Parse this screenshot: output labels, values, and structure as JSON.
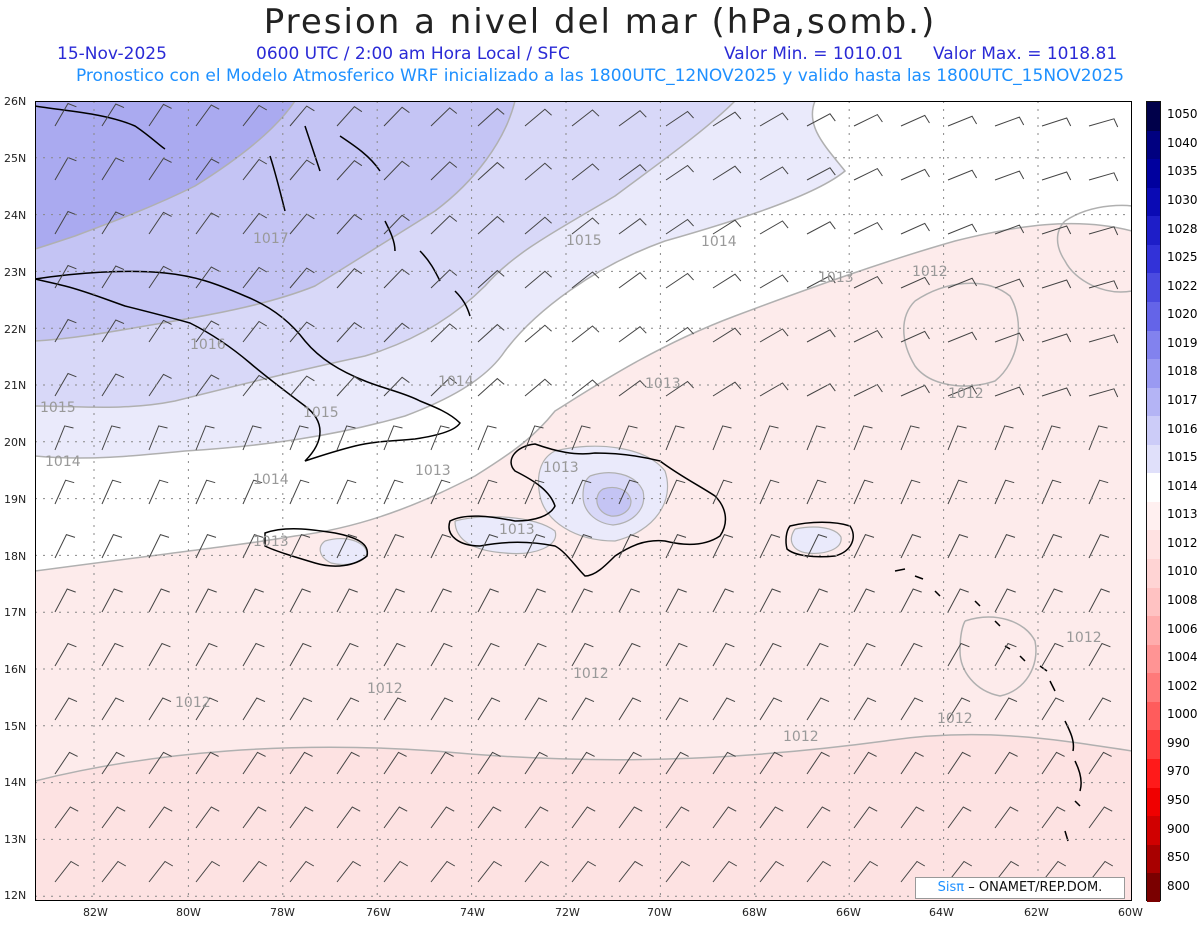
{
  "title": "Presion a nivel del mar (hPa,somb.)",
  "header": {
    "date": "15-Nov-2025",
    "time": "0600 UTC / 2:00 am Hora Local / SFC",
    "valor_min": "Valor Min. = 1010.01",
    "valor_max": "Valor Max. = 1018.81",
    "forecast": "Pronostico con el Modelo Atmosferico WRF inicializado a las 1800UTC_12NOV2025 y valido hasta las  1800UTC_15NOV2025"
  },
  "axes": {
    "lat_labels": [
      "26N",
      "25N",
      "24N",
      "23N",
      "22N",
      "21N",
      "20N",
      "19N",
      "18N",
      "17N",
      "16N",
      "15N",
      "14N",
      "13N",
      "12N"
    ],
    "lon_labels": [
      "82W",
      "80W",
      "78W",
      "76W",
      "74W",
      "72W",
      "70W",
      "68W",
      "66W",
      "64W",
      "62W",
      "60W"
    ]
  },
  "contour_labels": [
    "1017",
    "1016",
    "1015",
    "1014",
    "1013",
    "1012",
    "1015",
    "1014",
    "1013",
    "1012",
    "1015",
    "1014",
    "1013",
    "1012",
    "1012",
    "1013",
    "1014",
    "1013",
    "1012",
    "1012",
    "1012",
    "1012",
    "1013"
  ],
  "colorbar": {
    "labels": [
      "1050",
      "1040",
      "1035",
      "1030",
      "1028",
      "1025",
      "1022",
      "1020",
      "1019",
      "1018",
      "1017",
      "1016",
      "1015",
      "1014",
      "1013",
      "1012",
      "1010",
      "1008",
      "1006",
      "1004",
      "1002",
      "1000",
      "990",
      "970",
      "950",
      "900",
      "850",
      "800"
    ],
    "colors": [
      "#00004a",
      "#000080",
      "#00009e",
      "#0a0ab4",
      "#1e1ec8",
      "#3232d8",
      "#4b4be0",
      "#6464e8",
      "#8282ee",
      "#9a9af2",
      "#b4b4f5",
      "#ccccf8",
      "#e0e0fa",
      "#ffffff",
      "#fff0f0",
      "#ffe2e2",
      "#ffd4d4",
      "#ffc2c2",
      "#ffacac",
      "#ff9494",
      "#ff7a7a",
      "#ff5c5c",
      "#ff3c3c",
      "#ff1a1a",
      "#f00000",
      "#d00000",
      "#a80000",
      "#7a0000"
    ]
  },
  "credit": {
    "brand": "Sisπ",
    "text": "– ONAMET/REP.DOM."
  },
  "colors": {
    "zone_1017": "#aaaaf0",
    "zone_1016": "#c4c4f4",
    "zone_1015": "#d8d8f8",
    "zone_1014": "#eaeafb",
    "zone_1013": "#ffffff",
    "zone_1012": "#fdebeb",
    "zone_1011": "#fde2e2"
  }
}
